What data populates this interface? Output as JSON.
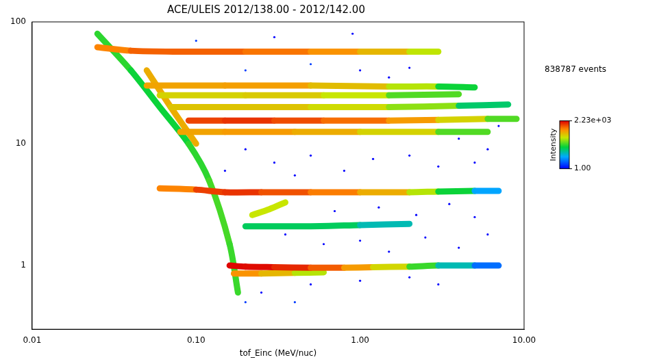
{
  "chart_data": {
    "type": "scatter",
    "title": "ACE/ULEIS 2012/138.00 - 2012/142.00",
    "x_label": "tof_Einc (MeV/nuc)",
    "annotation": "838787 events",
    "log": true,
    "grid": false,
    "xlim": [
      0.01,
      10
    ],
    "xticks": [
      {
        "value": 0.01,
        "label": "0.01"
      },
      {
        "value": 0.1,
        "label": "0.10"
      },
      {
        "value": 1,
        "label": "1.00"
      },
      {
        "value": 10,
        "label": "10.00"
      }
    ],
    "ylim": [
      0.3,
      100
    ],
    "yticks": [
      1,
      10,
      100
    ],
    "colorbar": {
      "label": "Intensity",
      "range": [
        1,
        2230
      ],
      "ticks": [
        {
          "value": 2230,
          "label": "2.23e+03"
        },
        {
          "value": 1,
          "label": "1.00"
        }
      ]
    },
    "tracks": [
      [
        [
          0.16,
          1.0,
          2000
        ],
        [
          0.2,
          0.98,
          2200
        ],
        [
          0.3,
          0.97,
          1800
        ],
        [
          0.5,
          0.96,
          1200
        ],
        [
          0.8,
          0.96,
          600
        ],
        [
          1.2,
          0.97,
          300
        ],
        [
          2,
          0.98,
          80
        ],
        [
          3,
          1.0,
          20
        ],
        [
          5,
          1.0,
          5
        ],
        [
          7,
          1.0,
          2
        ]
      ],
      [
        [
          0.17,
          0.86,
          600
        ],
        [
          0.25,
          0.86,
          400
        ],
        [
          0.4,
          0.87,
          200
        ],
        [
          0.6,
          0.88,
          60
        ]
      ],
      [
        [
          0.2,
          2.1,
          20
        ],
        [
          0.5,
          2.1,
          30
        ],
        [
          1,
          2.15,
          20
        ],
        [
          2,
          2.2,
          5
        ]
      ],
      [
        [
          0.22,
          2.6,
          100
        ],
        [
          0.28,
          2.9,
          200
        ],
        [
          0.35,
          3.3,
          100
        ]
      ],
      [
        [
          0.06,
          4.3,
          300
        ],
        [
          0.1,
          4.2,
          900
        ],
        [
          0.15,
          4.0,
          1500
        ],
        [
          0.25,
          4.0,
          1200
        ],
        [
          0.5,
          4.0,
          800
        ],
        [
          1,
          4.0,
          500
        ],
        [
          2,
          4.0,
          200
        ],
        [
          3,
          4.05,
          60
        ],
        [
          5,
          4.1,
          10
        ],
        [
          7,
          4.1,
          3
        ]
      ],
      [
        [
          0.08,
          12.5,
          300
        ],
        [
          0.15,
          12.5,
          500
        ],
        [
          0.4,
          12.5,
          400
        ],
        [
          1,
          12.5,
          300
        ],
        [
          3,
          12.5,
          100
        ],
        [
          6,
          12.5,
          20
        ]
      ],
      [
        [
          0.09,
          15.5,
          800
        ],
        [
          0.15,
          15.5,
          1500
        ],
        [
          0.3,
          15.5,
          1200
        ],
        [
          0.6,
          15.5,
          900
        ],
        [
          1.5,
          15.5,
          600
        ],
        [
          3,
          15.7,
          300
        ],
        [
          6,
          16,
          100
        ],
        [
          9,
          16,
          20
        ]
      ],
      [
        [
          0.07,
          20,
          200
        ],
        [
          0.2,
          20,
          300
        ],
        [
          0.5,
          20,
          200
        ],
        [
          1.5,
          20,
          150
        ],
        [
          4,
          20.5,
          40
        ],
        [
          8,
          21,
          5
        ]
      ],
      [
        [
          0.06,
          25,
          150
        ],
        [
          0.2,
          25,
          250
        ],
        [
          0.6,
          25,
          200
        ],
        [
          1.5,
          25,
          100
        ],
        [
          4,
          25.5,
          20
        ]
      ],
      [
        [
          0.05,
          30,
          300
        ],
        [
          0.15,
          30,
          500
        ],
        [
          0.5,
          30,
          350
        ],
        [
          1.5,
          29.5,
          200
        ],
        [
          3,
          29.5,
          60
        ],
        [
          5,
          29,
          10
        ]
      ],
      [
        [
          0.025,
          62,
          400
        ],
        [
          0.04,
          58,
          800
        ],
        [
          0.08,
          57,
          900
        ],
        [
          0.2,
          57,
          800
        ],
        [
          0.5,
          57,
          600
        ],
        [
          1,
          57,
          400
        ],
        [
          2,
          57,
          200
        ],
        [
          3,
          57,
          80
        ]
      ],
      [
        [
          0.025,
          80,
          50
        ],
        [
          0.04,
          40,
          40
        ],
        [
          0.06,
          20,
          30
        ],
        [
          0.09,
          10,
          40
        ],
        [
          0.12,
          5,
          50
        ],
        [
          0.16,
          1.5,
          60
        ],
        [
          0.18,
          0.6,
          40
        ]
      ],
      [
        [
          0.05,
          40,
          300
        ],
        [
          0.07,
          20,
          400
        ],
        [
          0.1,
          10,
          300
        ]
      ]
    ],
    "points": [
      [
        0.3,
        7,
        1
      ],
      [
        0.5,
        8,
        1
      ],
      [
        0.8,
        6,
        1
      ],
      [
        1.2,
        7.5,
        1
      ],
      [
        2,
        8,
        1
      ],
      [
        3,
        6.5,
        1
      ],
      [
        5,
        7,
        1
      ],
      [
        0.4,
        5.5,
        1
      ],
      [
        0.6,
        1.5,
        1
      ],
      [
        1,
        1.6,
        1
      ],
      [
        1.5,
        1.3,
        1
      ],
      [
        2.5,
        1.7,
        1
      ],
      [
        4,
        1.4,
        1
      ],
      [
        0.35,
        1.8,
        1
      ],
      [
        0.7,
        2.8,
        1
      ],
      [
        1.3,
        3.0,
        1
      ],
      [
        2.2,
        2.6,
        1
      ],
      [
        3.5,
        3.2,
        1
      ],
      [
        5,
        2.5,
        1
      ],
      [
        6,
        1.8,
        1
      ],
      [
        0.25,
        0.6,
        1
      ],
      [
        0.5,
        0.7,
        1
      ],
      [
        1,
        0.75,
        1
      ],
      [
        2,
        0.8,
        1
      ],
      [
        3,
        0.7,
        1
      ],
      [
        0.2,
        0.5,
        2
      ],
      [
        0.4,
        0.5,
        2
      ],
      [
        6,
        9,
        1
      ],
      [
        4,
        11,
        1
      ],
      [
        7,
        14,
        1
      ],
      [
        0.2,
        40,
        2
      ],
      [
        0.5,
        45,
        2
      ],
      [
        1,
        40,
        1
      ],
      [
        2,
        42,
        1
      ],
      [
        0.1,
        70,
        2
      ],
      [
        0.3,
        75,
        1
      ],
      [
        0.9,
        80,
        1
      ],
      [
        1.5,
        35,
        1
      ],
      [
        0.15,
        6,
        1
      ],
      [
        0.2,
        9,
        1
      ]
    ]
  }
}
